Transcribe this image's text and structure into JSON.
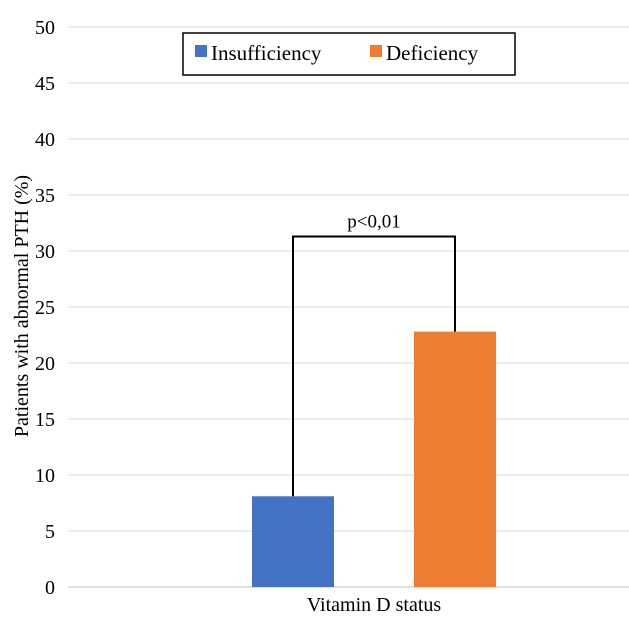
{
  "chart_data": {
    "type": "bar",
    "title": "",
    "xlabel": "Vitamin D status",
    "ylabel": "Patients with abnormal PTH (%)",
    "ylim": [
      0,
      50
    ],
    "yticks": [
      "0",
      "5",
      "10",
      "15",
      "20",
      "25",
      "30",
      "35",
      "40",
      "45",
      "50"
    ],
    "grid": true,
    "legend_position": "top-center",
    "categories": [
      "Vitamin D status"
    ],
    "series": [
      {
        "name": "Insufficiency",
        "values": [
          8.1
        ],
        "color": "#4472c4"
      },
      {
        "name": "Deficiency",
        "values": [
          22.8
        ],
        "color": "#ed7d31"
      }
    ],
    "annotation": {
      "text": "p<0,01",
      "bracket_top_value": 31.3
    }
  }
}
